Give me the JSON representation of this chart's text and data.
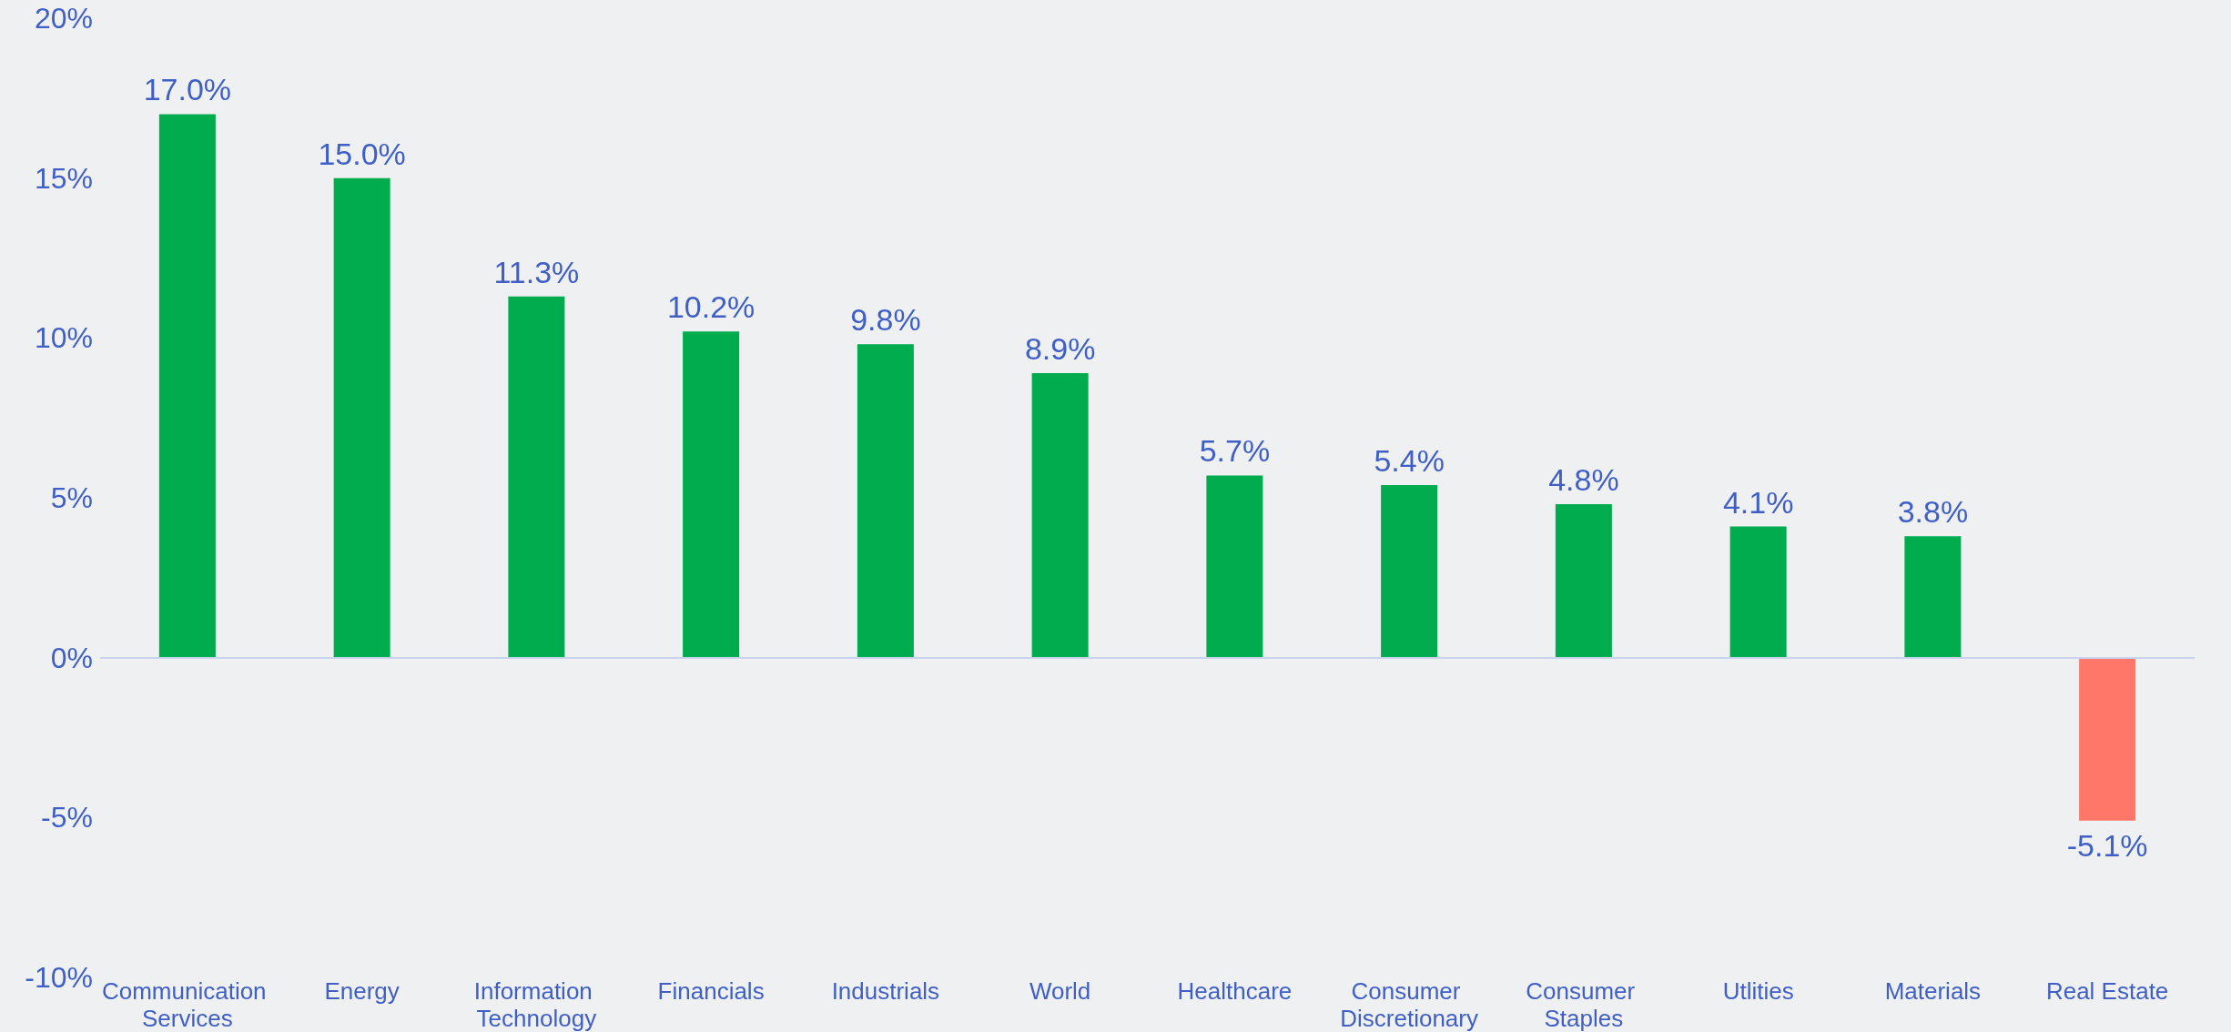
{
  "chart_data": {
    "type": "bar",
    "categories": [
      "Communication Services",
      "Energy",
      "Information Technology",
      "Financials",
      "Industrials",
      "World",
      "Healthcare",
      "Consumer Discretionary",
      "Consumer Staples",
      "Utlities",
      "Materials",
      "Real Estate"
    ],
    "values": [
      17.0,
      15.0,
      11.3,
      10.2,
      9.8,
      8.9,
      5.7,
      5.4,
      4.8,
      4.1,
      3.8,
      -5.1
    ],
    "colors": [
      "#00ac4e",
      "#00ac4e",
      "#00ac4e",
      "#00ac4e",
      "#00ac4e",
      "#00ac4e",
      "#00ac4e",
      "#00ac4e",
      "#00ac4e",
      "#00ac4e",
      "#00ac4e",
      "#ff7769"
    ],
    "value_labels": [
      "17.0%",
      "15.0%",
      "11.3%",
      "10.2%",
      "9.8%",
      "8.9%",
      "5.7%",
      "5.4%",
      "4.8%",
      "4.1%",
      "3.8%",
      "-5.1%"
    ],
    "ylim": [
      -10,
      20
    ],
    "yticks": [
      {
        "value": -10,
        "label": "-10%"
      },
      {
        "value": -5,
        "label": "-5%"
      },
      {
        "value": 0,
        "label": "0%"
      },
      {
        "value": 5,
        "label": "5%"
      },
      {
        "value": 10,
        "label": "10%"
      },
      {
        "value": 15,
        "label": "15%"
      },
      {
        "value": 20,
        "label": "20%"
      }
    ],
    "ref_lines": [
      {
        "axis": "y",
        "value": 0,
        "color": "#c9d3ee"
      }
    ],
    "grid": false
  }
}
